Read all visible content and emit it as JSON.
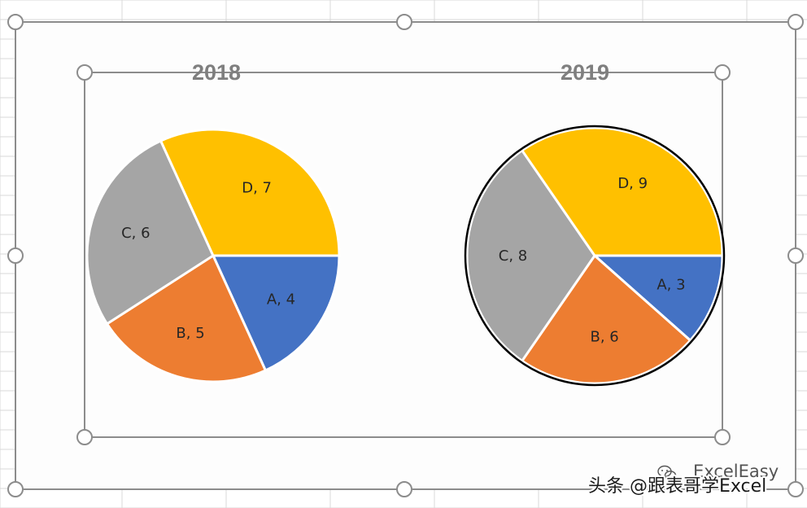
{
  "colors": {
    "A": "#4472c4",
    "B": "#ed7d31",
    "C": "#a5a5a5",
    "D": "#ffc000",
    "frame_border": "#8c8c8c",
    "gridlines": "#d9d9d9",
    "chart_area_bg": "#fdfdfd"
  },
  "chart_data": [
    {
      "type": "pie",
      "title": "2018",
      "categories": [
        "A",
        "B",
        "C",
        "D"
      ],
      "values": [
        4,
        5,
        6,
        7
      ],
      "labels": [
        "A, 4",
        "B, 5",
        "C, 6",
        "D, 7"
      ],
      "legend": "none",
      "outline": false
    },
    {
      "type": "pie",
      "title": "2019",
      "categories": [
        "A",
        "B",
        "C",
        "D"
      ],
      "values": [
        3,
        6,
        8,
        9
      ],
      "labels": [
        "A, 3",
        "B, 6",
        "C, 8",
        "D, 9"
      ],
      "legend": "none",
      "outline": true
    }
  ],
  "watermark": {
    "overlay_text": "ExcelEasy",
    "credit_text": "头条 @跟表哥学Excel"
  }
}
